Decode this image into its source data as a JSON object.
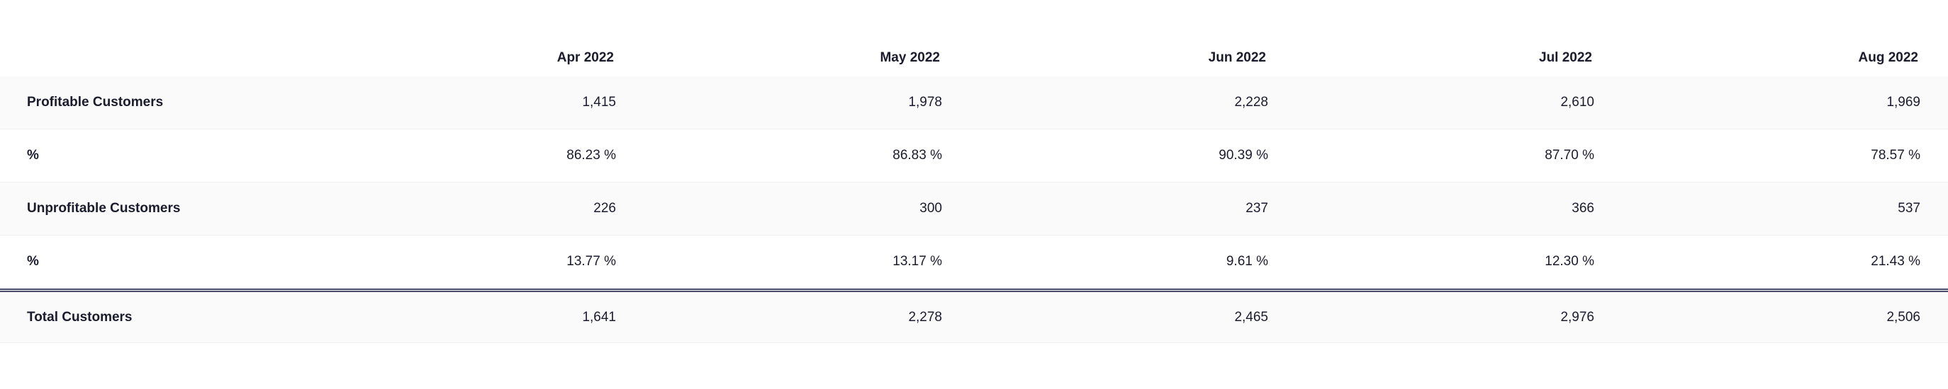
{
  "columns": [
    "Apr 2022",
    "May 2022",
    "Jun 2022",
    "Jul 2022",
    "Aug 2022"
  ],
  "rows": [
    {
      "label": "Profitable Customers",
      "values": [
        "1,415",
        "1,978",
        "2,228",
        "2,610",
        "1,969"
      ]
    },
    {
      "label": "%",
      "values": [
        "86.23 %",
        "86.83 %",
        "90.39 %",
        "87.70 %",
        "78.57 %"
      ]
    },
    {
      "label": "Unprofitable Customers",
      "values": [
        "226",
        "300",
        "237",
        "366",
        "537"
      ]
    },
    {
      "label": "%",
      "values": [
        "13.77 %",
        "13.17 %",
        "9.61 %",
        "12.30 %",
        "21.43 %"
      ]
    }
  ],
  "total": {
    "label": "Total Customers",
    "values": [
      "1,641",
      "2,278",
      "2,465",
      "2,976",
      "2,506"
    ]
  }
}
